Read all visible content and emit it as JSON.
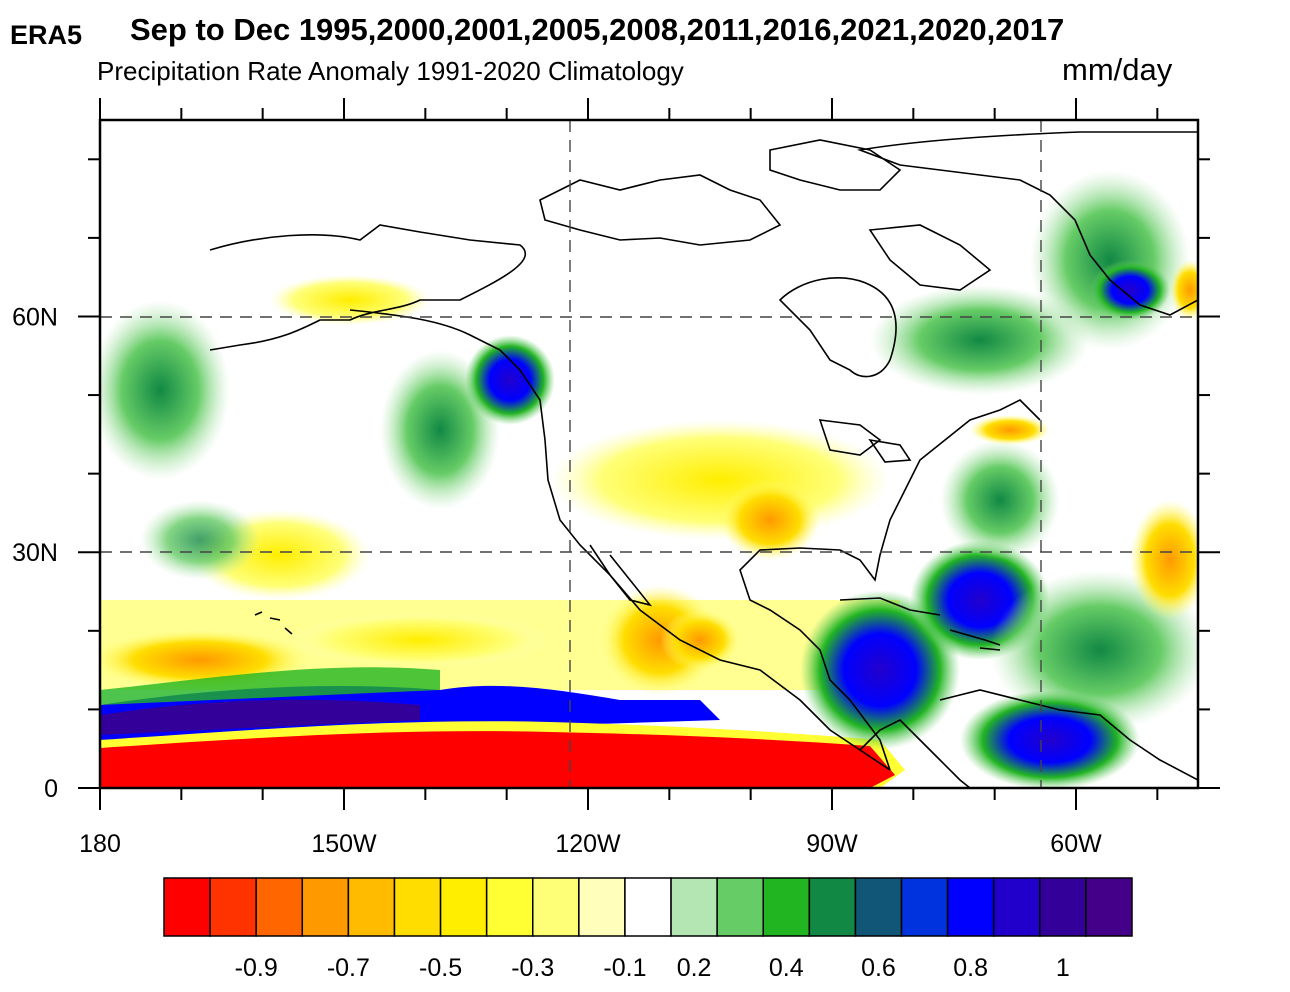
{
  "header": {
    "source": "ERA5",
    "title": "Sep to Dec 1995,2000,2001,2005,2008,2011,2016,2021,2020,2017",
    "subtitle": "Precipitation Rate Anomaly  1991-2020 Climatology",
    "units": "mm/day"
  },
  "map": {
    "projection": "cylindrical equidistant",
    "lon_range": [
      -180,
      -45
    ],
    "lat_range": [
      0,
      85
    ],
    "x_ticks": [
      {
        "lon": -180,
        "label": "180"
      },
      {
        "lon": -150,
        "label": "150W"
      },
      {
        "lon": -120,
        "label": "120W"
      },
      {
        "lon": -90,
        "label": "90W"
      },
      {
        "lon": -60,
        "label": "60W"
      }
    ],
    "y_ticks": [
      {
        "lat": 0,
        "label": "0"
      },
      {
        "lat": 30,
        "label": "30N"
      },
      {
        "lat": 60,
        "label": "60N"
      }
    ],
    "gridlines": "dashed at 120W, 60W, 30N, 60N",
    "land_color": "#ffffff",
    "coastline_color": "#000000"
  },
  "colorbar": {
    "colors": [
      "#ff0000",
      "#ff3300",
      "#ff6600",
      "#ff9900",
      "#ffbb00",
      "#ffdd00",
      "#ffee00",
      "#ffff33",
      "#ffff77",
      "#ffffbb",
      "#ffffff",
      "#b3e6b3",
      "#66cc66",
      "#22b522",
      "#118844",
      "#115577",
      "#0033dd",
      "#0000ff",
      "#2200cc",
      "#330099",
      "#440088"
    ],
    "labels": [
      "-0.9",
      "-0.7",
      "-0.5",
      "-0.3",
      "-0.1",
      "0.2",
      "0.4",
      "0.6",
      "0.8",
      "1"
    ]
  }
}
